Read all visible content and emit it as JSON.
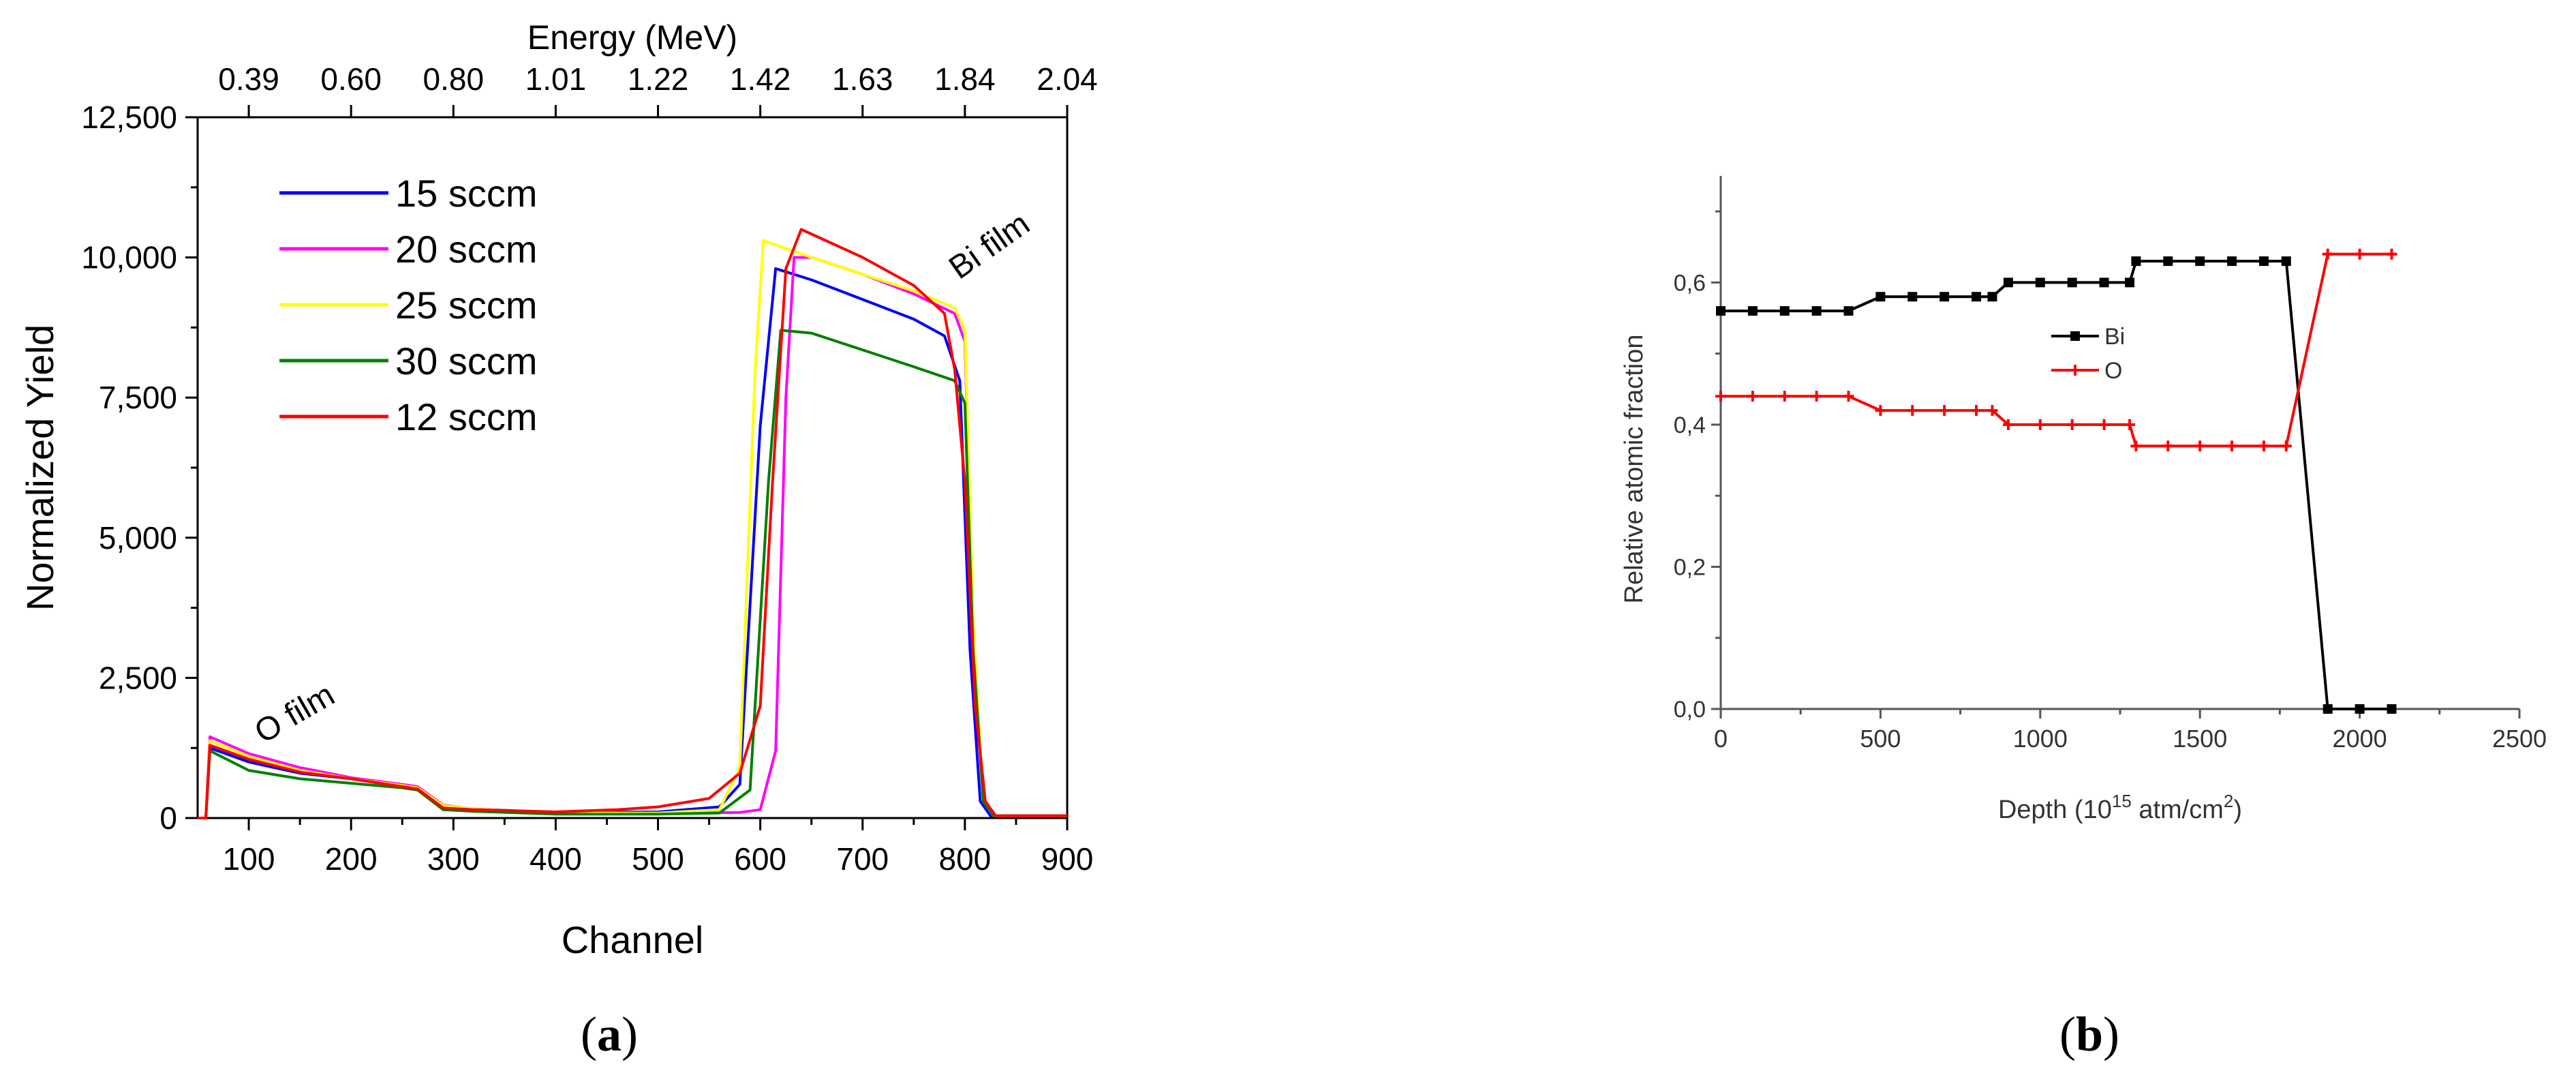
{
  "chart_data": [
    {
      "type": "line",
      "panel": "a",
      "panel_label": "a",
      "xlabel": "Channel",
      "ylabel": "Normalized Yield",
      "top_axis_label": "Energy (MeV)",
      "xlim": [
        50,
        900
      ],
      "ylim": [
        0,
        12500
      ],
      "x_ticks": [
        100,
        200,
        300,
        400,
        500,
        600,
        700,
        800,
        900
      ],
      "y_ticks": [
        0,
        2500,
        5000,
        7500,
        10000,
        12500
      ],
      "y_tick_labels": [
        "0",
        "2,500",
        "5,000",
        "7,500",
        "10,000",
        "12,500"
      ],
      "top_ticks": [
        {
          "channel": 100,
          "label": "0.39"
        },
        {
          "channel": 200,
          "label": "0.60"
        },
        {
          "channel": 300,
          "label": "0.80"
        },
        {
          "channel": 400,
          "label": "1.01"
        },
        {
          "channel": 500,
          "label": "1.22"
        },
        {
          "channel": 600,
          "label": "1.42"
        },
        {
          "channel": 700,
          "label": "1.63"
        },
        {
          "channel": 800,
          "label": "1.84"
        },
        {
          "channel": 900,
          "label": "2.04"
        }
      ],
      "annotations": [
        {
          "text": "O film",
          "x": 150,
          "y": 1700,
          "rotate": -30
        },
        {
          "text": "Bi film",
          "x": 830,
          "y": 10050,
          "rotate": -35
        }
      ],
      "legend_position": "top-left",
      "series": [
        {
          "name": "15 sccm",
          "color": "#0000ff",
          "points": [
            [
              50,
              0
            ],
            [
              58,
              0
            ],
            [
              62,
              1250
            ],
            [
              100,
              1000
            ],
            [
              150,
              800
            ],
            [
              200,
              700
            ],
            [
              250,
              560
            ],
            [
              265,
              520
            ],
            [
              290,
              200
            ],
            [
              320,
              160
            ],
            [
              400,
              100
            ],
            [
              500,
              110
            ],
            [
              560,
              200
            ],
            [
              580,
              600
            ],
            [
              600,
              7000
            ],
            [
              615,
              9800
            ],
            [
              650,
              9600
            ],
            [
              700,
              9250
            ],
            [
              750,
              8900
            ],
            [
              780,
              8600
            ],
            [
              795,
              7800
            ],
            [
              805,
              3000
            ],
            [
              815,
              300
            ],
            [
              825,
              40
            ],
            [
              900,
              40
            ]
          ]
        },
        {
          "name": "20 sccm",
          "color": "#ff00ff",
          "points": [
            [
              50,
              0
            ],
            [
              58,
              0
            ],
            [
              62,
              1450
            ],
            [
              100,
              1150
            ],
            [
              150,
              900
            ],
            [
              200,
              720
            ],
            [
              250,
              600
            ],
            [
              265,
              560
            ],
            [
              290,
              230
            ],
            [
              320,
              160
            ],
            [
              400,
              90
            ],
            [
              500,
              80
            ],
            [
              580,
              100
            ],
            [
              600,
              150
            ],
            [
              615,
              1200
            ],
            [
              625,
              7500
            ],
            [
              633,
              10000
            ],
            [
              650,
              10000
            ],
            [
              700,
              9700
            ],
            [
              750,
              9350
            ],
            [
              790,
              9000
            ],
            [
              800,
              8500
            ],
            [
              808,
              3500
            ],
            [
              818,
              300
            ],
            [
              828,
              40
            ],
            [
              900,
              40
            ]
          ]
        },
        {
          "name": "25 sccm",
          "color": "#ffff00",
          "points": [
            [
              50,
              0
            ],
            [
              58,
              0
            ],
            [
              62,
              1380
            ],
            [
              100,
              1100
            ],
            [
              150,
              850
            ],
            [
              200,
              700
            ],
            [
              250,
              580
            ],
            [
              265,
              540
            ],
            [
              290,
              220
            ],
            [
              320,
              160
            ],
            [
              400,
              90
            ],
            [
              500,
              90
            ],
            [
              560,
              150
            ],
            [
              580,
              900
            ],
            [
              595,
              8000
            ],
            [
              603,
              10300
            ],
            [
              650,
              10000
            ],
            [
              700,
              9700
            ],
            [
              750,
              9400
            ],
            [
              790,
              9100
            ],
            [
              800,
              8700
            ],
            [
              808,
              3500
            ],
            [
              818,
              300
            ],
            [
              828,
              40
            ],
            [
              900,
              40
            ]
          ]
        },
        {
          "name": "30 sccm",
          "color": "#008000",
          "points": [
            [
              50,
              0
            ],
            [
              58,
              0
            ],
            [
              62,
              1200
            ],
            [
              100,
              850
            ],
            [
              150,
              700
            ],
            [
              200,
              620
            ],
            [
              250,
              540
            ],
            [
              265,
              500
            ],
            [
              290,
              150
            ],
            [
              320,
              120
            ],
            [
              400,
              70
            ],
            [
              500,
              70
            ],
            [
              560,
              90
            ],
            [
              590,
              500
            ],
            [
              608,
              6000
            ],
            [
              620,
              8700
            ],
            [
              650,
              8650
            ],
            [
              700,
              8350
            ],
            [
              750,
              8050
            ],
            [
              790,
              7800
            ],
            [
              800,
              7400
            ],
            [
              808,
              3000
            ],
            [
              818,
              300
            ],
            [
              828,
              40
            ],
            [
              900,
              40
            ]
          ]
        },
        {
          "name": "12 sccm",
          "color": "#ff0000",
          "points": [
            [
              50,
              0
            ],
            [
              58,
              0
            ],
            [
              62,
              1300
            ],
            [
              100,
              1050
            ],
            [
              150,
              820
            ],
            [
              200,
              700
            ],
            [
              250,
              560
            ],
            [
              265,
              520
            ],
            [
              290,
              180
            ],
            [
              320,
              150
            ],
            [
              400,
              110
            ],
            [
              460,
              150
            ],
            [
              500,
              200
            ],
            [
              550,
              350
            ],
            [
              580,
              800
            ],
            [
              600,
              2000
            ],
            [
              612,
              6000
            ],
            [
              625,
              9800
            ],
            [
              640,
              10500
            ],
            [
              700,
              10000
            ],
            [
              750,
              9500
            ],
            [
              780,
              9000
            ],
            [
              790,
              8000
            ],
            [
              800,
              6000
            ],
            [
              810,
              2000
            ],
            [
              820,
              300
            ],
            [
              830,
              40
            ],
            [
              900,
              40
            ]
          ]
        }
      ]
    },
    {
      "type": "line",
      "panel": "b",
      "panel_label": "b",
      "xlabel_main": "Depth (10",
      "xlabel_sup": "15",
      "xlabel_mid": " atm/cm",
      "xlabel_sup2": "2",
      "xlabel_end": ")",
      "ylabel": "Relative atomic fraction",
      "xlim": [
        0,
        2500
      ],
      "ylim": [
        0,
        0.75
      ],
      "x_ticks": [
        0,
        500,
        1000,
        1500,
        2000,
        2500
      ],
      "y_ticks": [
        0.0,
        0.2,
        0.4,
        0.6
      ],
      "y_tick_labels": [
        "0,0",
        "0,2",
        "0,4",
        "0,6"
      ],
      "legend_position": "center",
      "series": [
        {
          "name": "Bi",
          "color": "#000000",
          "marker": "square",
          "points": [
            [
              0,
              0.56
            ],
            [
              100,
              0.56
            ],
            [
              200,
              0.56
            ],
            [
              300,
              0.56
            ],
            [
              400,
              0.56
            ],
            [
              500,
              0.58
            ],
            [
              600,
              0.58
            ],
            [
              700,
              0.58
            ],
            [
              800,
              0.58
            ],
            [
              850,
              0.58
            ],
            [
              900,
              0.6
            ],
            [
              1000,
              0.6
            ],
            [
              1100,
              0.6
            ],
            [
              1200,
              0.6
            ],
            [
              1280,
              0.6
            ],
            [
              1300,
              0.63
            ],
            [
              1400,
              0.63
            ],
            [
              1500,
              0.63
            ],
            [
              1600,
              0.63
            ],
            [
              1700,
              0.63
            ],
            [
              1770,
              0.63
            ],
            [
              1900,
              0.0
            ],
            [
              2000,
              0.0
            ],
            [
              2100,
              0.0
            ]
          ]
        },
        {
          "name": "O",
          "color": "#ff0000",
          "marker": "star",
          "points": [
            [
              0,
              0.44
            ],
            [
              100,
              0.44
            ],
            [
              200,
              0.44
            ],
            [
              300,
              0.44
            ],
            [
              400,
              0.44
            ],
            [
              500,
              0.42
            ],
            [
              600,
              0.42
            ],
            [
              700,
              0.42
            ],
            [
              800,
              0.42
            ],
            [
              850,
              0.42
            ],
            [
              900,
              0.4
            ],
            [
              1000,
              0.4
            ],
            [
              1100,
              0.4
            ],
            [
              1200,
              0.4
            ],
            [
              1280,
              0.4
            ],
            [
              1300,
              0.37
            ],
            [
              1400,
              0.37
            ],
            [
              1500,
              0.37
            ],
            [
              1600,
              0.37
            ],
            [
              1700,
              0.37
            ],
            [
              1770,
              0.37
            ],
            [
              1900,
              0.64
            ],
            [
              2000,
              0.64
            ],
            [
              2100,
              0.64
            ]
          ]
        }
      ]
    }
  ]
}
